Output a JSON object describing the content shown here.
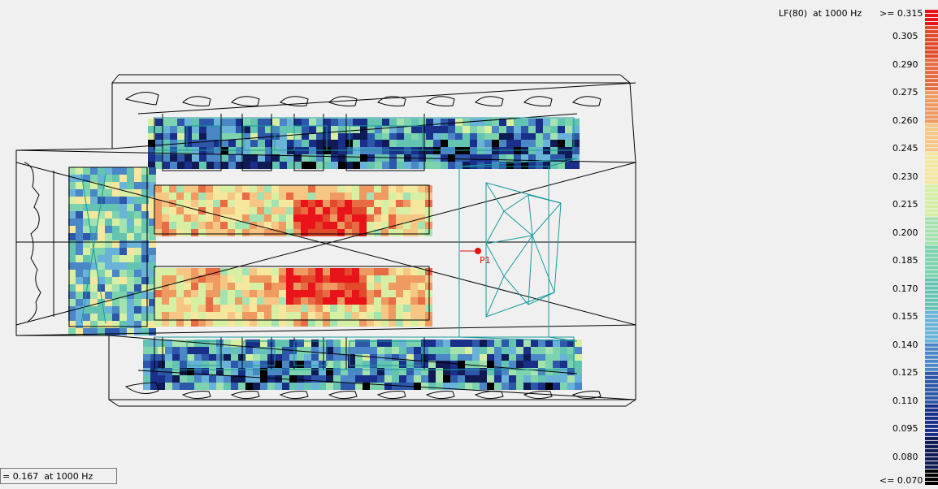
{
  "legend": {
    "title": "LF(80)  at 1000 Hz",
    "max_label": ">= 0.315",
    "min_label": "<= 0.070",
    "ticks": [
      "0.305",
      "0.290",
      "0.275",
      "0.260",
      "0.245",
      "0.230",
      "0.215",
      "0.200",
      "0.185",
      "0.170",
      "0.155",
      "0.140",
      "0.125",
      "0.110",
      "0.095",
      "0.080"
    ],
    "colors": [
      "#e8141a",
      "#e34a2c",
      "#e86c43",
      "#ef9a60",
      "#f6c684",
      "#f5e79e",
      "#d6efa3",
      "#a4e2b0",
      "#7cd3ad",
      "#64c4b2",
      "#6ab3d8",
      "#4b86c6",
      "#2d57a8",
      "#1a2f8a",
      "#101a55",
      "#000000"
    ]
  },
  "receiver": {
    "label": "P1",
    "color": "#e81010"
  },
  "status": {
    "text": "= 0.167  at 1000 Hz"
  }
}
